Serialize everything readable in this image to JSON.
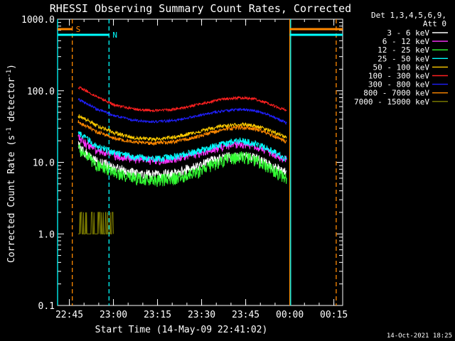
{
  "chart_data": {
    "type": "line",
    "title": "RHESSI Observing Summary Count Rates, Corrected",
    "xlabel": "Start Time (14-May-09 22:41:02)",
    "ylabel_main": "Corrected Count Rate (s",
    "ylabel_sup1": "-1",
    "ylabel_mid": " detector",
    "ylabel_sup2": "-1",
    "ylabel_end": ")",
    "yscale": "log",
    "ylim": [
      0.1,
      1000
    ],
    "x_unit": "minutes after 22:41:02",
    "xlim": [
      0,
      97
    ],
    "x_ticks": [
      {
        "x": 4,
        "label": "22:45"
      },
      {
        "x": 19,
        "label": "23:00"
      },
      {
        "x": 34,
        "label": "23:15"
      },
      {
        "x": 49,
        "label": "23:30"
      },
      {
        "x": 64,
        "label": "23:45"
      },
      {
        "x": 79,
        "label": "00:00"
      },
      {
        "x": 94,
        "label": "00:15"
      }
    ],
    "y_ticks": [
      {
        "y": 1000,
        "label": "1000.0"
      },
      {
        "y": 100,
        "label": "100.0"
      },
      {
        "y": 10,
        "label": "10.0"
      },
      {
        "y": 1,
        "label": "1.0"
      },
      {
        "y": 0.1,
        "label": "0.1"
      }
    ],
    "legend_header": [
      "Det 1,3,4,5,6,9,",
      "Att 0"
    ],
    "legend_placement": "right",
    "series": [
      {
        "name": "3 - 6 keV",
        "color": "#ffffff",
        "x": [
          7,
          8,
          13,
          19,
          26,
          33,
          40,
          48,
          56,
          62,
          67,
          72,
          75,
          77,
          78
        ],
        "values": [
          18,
          15,
          10.5,
          8.5,
          7,
          6.8,
          7,
          9,
          11.5,
          12.5,
          11.5,
          9.5,
          8,
          7.5,
          7
        ]
      },
      {
        "name": "6 - 12 keV",
        "color": "#ff33ff",
        "x": [
          7,
          8,
          13,
          19,
          26,
          33,
          40,
          48,
          56,
          62,
          67,
          72,
          75,
          77,
          78
        ],
        "values": [
          23,
          20,
          15,
          12.5,
          11,
          10.5,
          11,
          13,
          16.5,
          18,
          17,
          14,
          12,
          11.5,
          11
        ]
      },
      {
        "name": "12 - 25 keV",
        "color": "#33ff33",
        "x": [
          7,
          8,
          13,
          19,
          26,
          33,
          40,
          48,
          56,
          62,
          67,
          72,
          75,
          77,
          78
        ],
        "values": [
          16,
          14,
          9.5,
          7.2,
          6,
          5.6,
          6,
          7.5,
          10.5,
          12,
          11,
          8.5,
          7,
          6.5,
          6
        ]
      },
      {
        "name": "25 - 50 keV",
        "color": "#00ffff",
        "x": [
          7,
          8,
          13,
          19,
          26,
          33,
          40,
          48,
          56,
          62,
          67,
          72,
          75,
          77,
          78
        ],
        "values": [
          26,
          24,
          17,
          13.5,
          12,
          11.2,
          12,
          14.5,
          18,
          20,
          18.5,
          15,
          13,
          11.5,
          11
        ]
      },
      {
        "name": "50 - 100 keV",
        "color": "#ffcc00",
        "x": [
          7,
          8,
          13,
          19,
          26,
          33,
          40,
          48,
          56,
          62,
          67,
          72,
          75,
          77,
          78
        ],
        "values": [
          45,
          43,
          33,
          26,
          22,
          21,
          22.5,
          27,
          32,
          34,
          32.5,
          28,
          25,
          23,
          22
        ]
      },
      {
        "name": "100 - 300 keV",
        "color": "#ff2020",
        "x": [
          7,
          8,
          13,
          19,
          26,
          33,
          40,
          48,
          56,
          62,
          67,
          72,
          75,
          77,
          78
        ],
        "values": [
          112,
          108,
          84,
          64,
          55,
          53,
          55,
          64,
          76,
          80,
          77,
          66,
          58,
          55,
          53
        ]
      },
      {
        "name": "300 - 800 keV",
        "color": "#2020ff",
        "x": [
          7,
          8,
          13,
          19,
          26,
          33,
          40,
          48,
          56,
          62,
          67,
          72,
          75,
          77,
          78
        ],
        "values": [
          76,
          73,
          56,
          45,
          38.5,
          37,
          38.5,
          45,
          52,
          55,
          53,
          46,
          40,
          37,
          35
        ]
      },
      {
        "name": "800 - 7000 keV",
        "color": "#ff8800",
        "x": [
          7,
          8,
          13,
          19,
          26,
          33,
          40,
          48,
          56,
          62,
          67,
          72,
          75,
          77,
          78
        ],
        "values": [
          37,
          35,
          27,
          22,
          19,
          18.5,
          19.5,
          23,
          28.5,
          31,
          29.5,
          25,
          22,
          20,
          19.5
        ]
      },
      {
        "name": "7000 - 15000 keV",
        "color": "#808000",
        "x": [
          7,
          8,
          11,
          13,
          15,
          17,
          18,
          19
        ],
        "values": [
          1,
          2,
          1,
          2,
          1,
          2,
          1,
          1
        ]
      }
    ],
    "vertical_lines": [
      {
        "x": 0,
        "color": "#00ffff",
        "style": "solid"
      },
      {
        "x": 5,
        "color": "#ff8800",
        "style": "dashed"
      },
      {
        "x": 17.5,
        "color": "#00ffff",
        "style": "dashed"
      },
      {
        "x": 79,
        "color": "#ff8800",
        "style": "solid"
      },
      {
        "x": 79.3,
        "color": "#00ffff",
        "style": "solid"
      },
      {
        "x": 94.8,
        "color": "#ff8800",
        "style": "dashed"
      }
    ],
    "flag_bars": [
      {
        "label": "S",
        "color": "#ff8800",
        "x_start": 0,
        "x_end": 5,
        "x_start2": 79,
        "x_end2": 97
      },
      {
        "label": "N",
        "color": "#00ffff",
        "x_start": 0,
        "x_end": 17.5,
        "x_start2": 79,
        "x_end2": 97
      }
    ],
    "footer_timestamp": "14-Oct-2021 18:25"
  }
}
